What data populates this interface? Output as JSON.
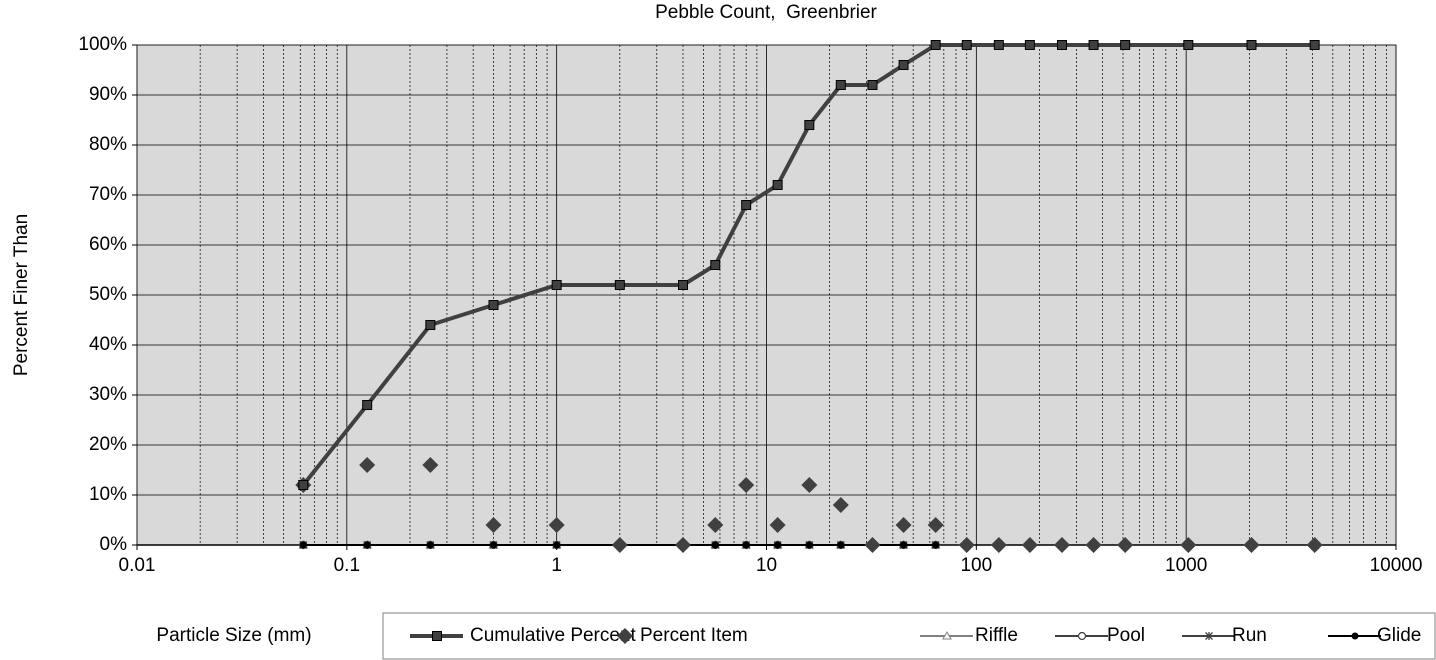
{
  "chart_data": {
    "type": "line",
    "title": "Pebble Count,  Greenbrier",
    "x_label": "Particle Size (mm)",
    "y_label": "Percent Finer Than",
    "x": [
      0.062,
      0.125,
      0.25,
      0.5,
      1,
      2,
      4,
      5.7,
      8,
      11.3,
      16,
      22.6,
      32,
      45,
      64,
      90,
      128,
      180,
      256,
      362,
      512,
      1024,
      2048,
      4096
    ],
    "series": [
      {
        "name": "Riffle",
        "color": "#808080",
        "marker": "triangle",
        "line": true,
        "values": [
          0,
          0,
          0,
          0,
          0,
          0,
          0,
          0,
          0,
          0,
          0,
          0,
          0,
          0,
          0,
          null,
          null,
          null,
          null,
          null,
          null,
          null,
          null,
          null
        ]
      },
      {
        "name": "Pool",
        "color": "#404040",
        "marker": "circle-open",
        "line": true,
        "values": [
          0,
          0,
          0,
          0,
          0,
          0,
          0,
          0,
          0,
          0,
          0,
          0,
          0,
          0,
          0,
          null,
          null,
          null,
          null,
          null,
          null,
          null,
          null,
          null
        ]
      },
      {
        "name": "Run",
        "color": "#404040",
        "marker": "star",
        "line": true,
        "values": [
          0,
          0,
          0,
          0,
          0,
          0,
          0,
          0,
          0,
          0,
          0,
          0,
          0,
          0,
          0,
          null,
          null,
          null,
          null,
          null,
          null,
          null,
          null,
          null
        ]
      },
      {
        "name": "Glide",
        "color": "#000000",
        "marker": "circle",
        "line": true,
        "values": [
          0,
          0,
          0,
          0,
          0,
          0,
          0,
          0,
          0,
          0,
          0,
          0,
          0,
          0,
          0,
          null,
          null,
          null,
          null,
          null,
          null,
          null,
          null,
          null
        ]
      },
      {
        "name": "Percent Item",
        "color": "#404040",
        "marker": "diamond",
        "line": false,
        "values": [
          12,
          16,
          16,
          4,
          4,
          0,
          0,
          4,
          12,
          4,
          12,
          8,
          0,
          4,
          4,
          0,
          0,
          0,
          0,
          0,
          0,
          0,
          0,
          0
        ]
      },
      {
        "name": "Cumulative Percent",
        "color": "#404040",
        "marker": "square",
        "line": true,
        "values": [
          12,
          28,
          44,
          48,
          52,
          52,
          52,
          56,
          68,
          72,
          84,
          92,
          92,
          96,
          100,
          100,
          100,
          100,
          100,
          100,
          100,
          100,
          100,
          100
        ]
      }
    ],
    "legend_order": [
      5,
      4,
      0,
      1,
      2,
      3
    ],
    "xlim": [
      0.01,
      10000
    ],
    "xlog": true,
    "xticks": [
      0.01,
      0.1,
      1,
      10,
      100,
      1000,
      10000
    ],
    "ylim": [
      0,
      100
    ],
    "yticks": [
      {
        "value": 0,
        "label": "0%"
      },
      {
        "value": 10,
        "label": "10%"
      },
      {
        "value": 20,
        "label": "20%"
      },
      {
        "value": 30,
        "label": "30%"
      },
      {
        "value": 40,
        "label": "40%"
      },
      {
        "value": 50,
        "label": "50%"
      },
      {
        "value": 60,
        "label": "60%"
      },
      {
        "value": 70,
        "label": "70%"
      },
      {
        "value": 80,
        "label": "80%"
      },
      {
        "value": 90,
        "label": "90%"
      },
      {
        "value": 100,
        "label": "100%"
      }
    ],
    "grid": true,
    "minor_grid": true,
    "background": "#d9d9d9",
    "legend": "bottom"
  }
}
